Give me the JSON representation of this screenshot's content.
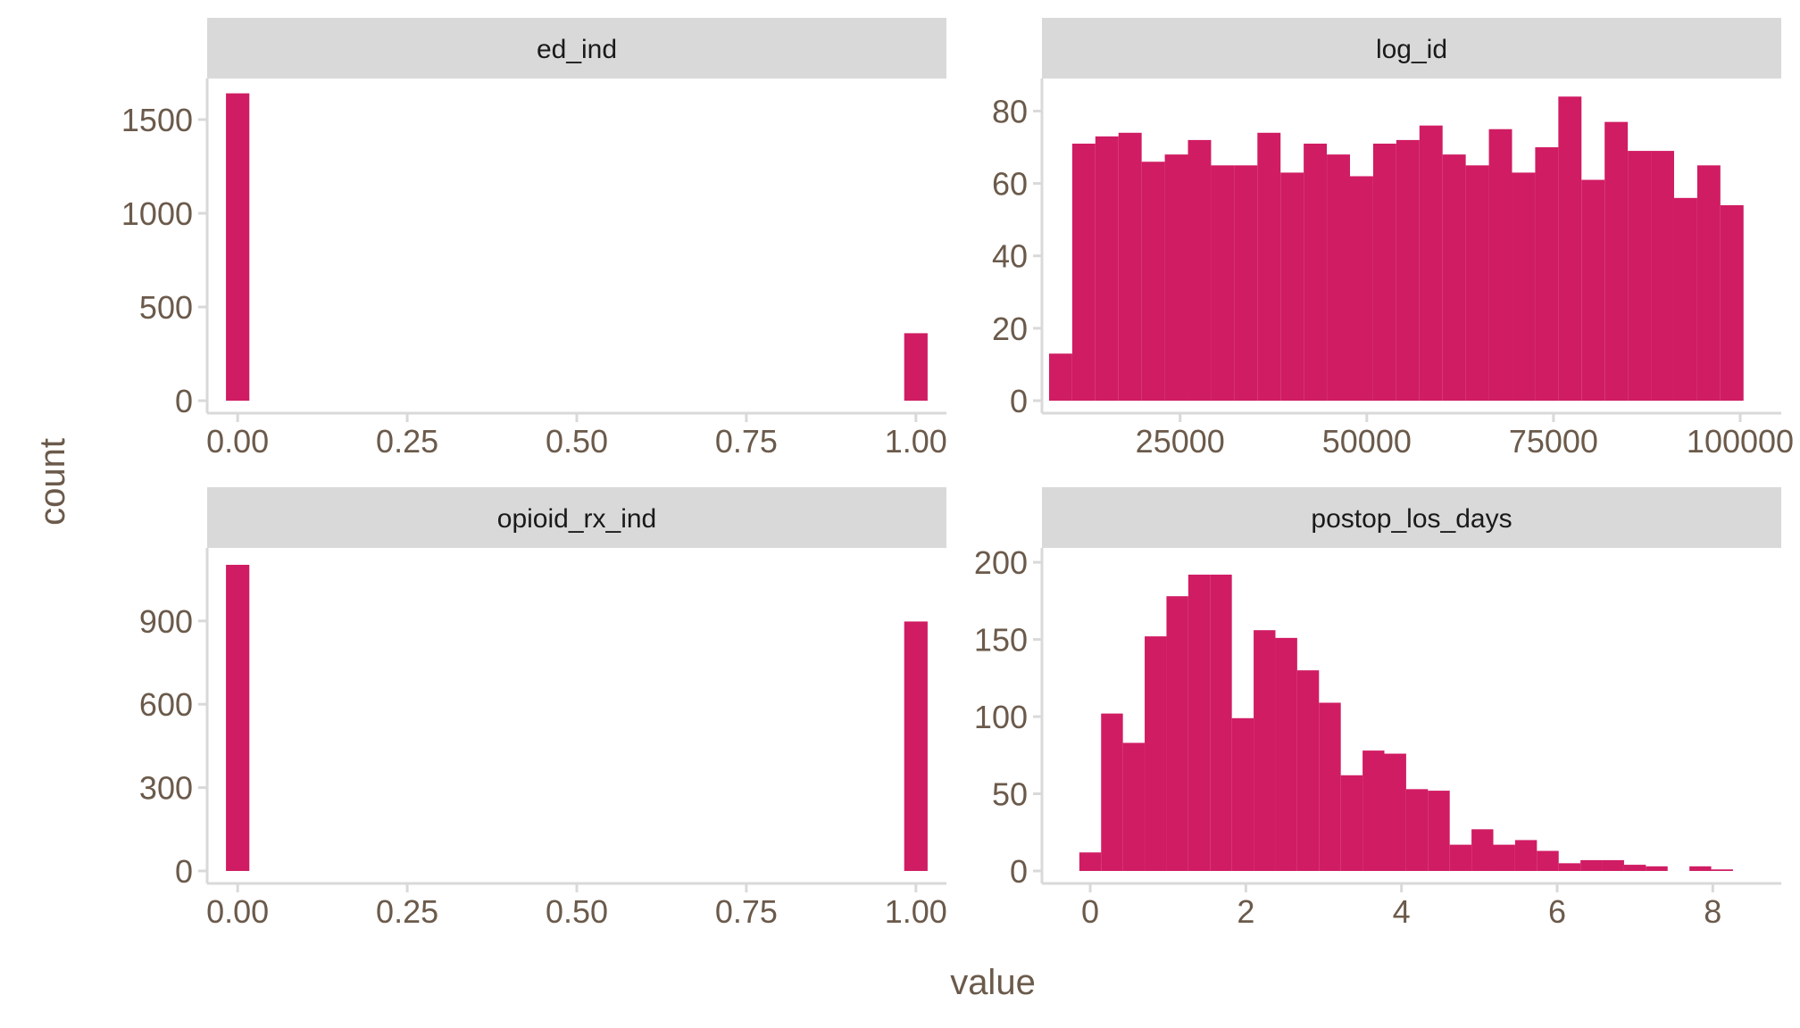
{
  "figure": {
    "x_title": "value",
    "y_title": "count",
    "colors": {
      "bar": "#D01C63",
      "strip": "#D9D9D9",
      "axis_line": "#D9D9D9",
      "text": "#6B5A4B"
    }
  },
  "chart_data": [
    {
      "type": "bar",
      "facet": "ed_ind",
      "title": "ed_ind",
      "xlabel": "value",
      "ylabel": "count",
      "xlim": [
        -0.045,
        1.045
      ],
      "ylim": [
        0,
        1700
      ],
      "xticks": [
        0,
        0.25,
        0.5,
        0.75,
        1.0
      ],
      "xtick_labels": [
        "0.00",
        "0.25",
        "0.50",
        "0.75",
        "1.00"
      ],
      "yticks": [
        0,
        500,
        1000,
        1500
      ],
      "ytick_labels": [
        "0",
        "500",
        "1000",
        "1500"
      ],
      "bin_width": 0.0345,
      "bins": [
        {
          "x": 0.0,
          "count": 1640
        },
        {
          "x": 1.0,
          "count": 360
        }
      ]
    },
    {
      "type": "bar",
      "facet": "log_id",
      "title": "log_id",
      "xlabel": "value",
      "ylabel": "count",
      "xlim": [
        6500,
        105500
      ],
      "ylim": [
        0,
        88
      ],
      "xticks": [
        25000,
        50000,
        75000,
        100000
      ],
      "xtick_labels": [
        "25000",
        "50000",
        "75000",
        "100000"
      ],
      "yticks": [
        0,
        20,
        40,
        60,
        80
      ],
      "ytick_labels": [
        "0",
        "20",
        "40",
        "60",
        "80"
      ],
      "bin_width": 3100,
      "bins": [
        {
          "x": 9000,
          "count": 13
        },
        {
          "x": 12100,
          "count": 71
        },
        {
          "x": 15200,
          "count": 73
        },
        {
          "x": 18300,
          "count": 74
        },
        {
          "x": 21400,
          "count": 66
        },
        {
          "x": 24500,
          "count": 68
        },
        {
          "x": 27600,
          "count": 72
        },
        {
          "x": 30700,
          "count": 65
        },
        {
          "x": 33800,
          "count": 65
        },
        {
          "x": 36900,
          "count": 74
        },
        {
          "x": 40000,
          "count": 63
        },
        {
          "x": 43100,
          "count": 71
        },
        {
          "x": 46200,
          "count": 68
        },
        {
          "x": 49300,
          "count": 62
        },
        {
          "x": 52400,
          "count": 71
        },
        {
          "x": 55500,
          "count": 72
        },
        {
          "x": 58600,
          "count": 76
        },
        {
          "x": 61700,
          "count": 68
        },
        {
          "x": 64800,
          "count": 65
        },
        {
          "x": 67900,
          "count": 75
        },
        {
          "x": 71000,
          "count": 63
        },
        {
          "x": 74100,
          "count": 70
        },
        {
          "x": 77200,
          "count": 84
        },
        {
          "x": 80300,
          "count": 61
        },
        {
          "x": 83400,
          "count": 77
        },
        {
          "x": 86500,
          "count": 69
        },
        {
          "x": 89600,
          "count": 69
        },
        {
          "x": 92700,
          "count": 56
        },
        {
          "x": 95800,
          "count": 65
        },
        {
          "x": 98900,
          "count": 54
        }
      ]
    },
    {
      "type": "bar",
      "facet": "opioid_rx_ind",
      "title": "opioid_rx_ind",
      "xlabel": "value",
      "ylabel": "count",
      "xlim": [
        -0.045,
        1.045
      ],
      "ylim": [
        0,
        1150
      ],
      "xticks": [
        0,
        0.25,
        0.5,
        0.75,
        1.0
      ],
      "xtick_labels": [
        "0.00",
        "0.25",
        "0.50",
        "0.75",
        "1.00"
      ],
      "yticks": [
        0,
        300,
        600,
        900
      ],
      "ytick_labels": [
        "0",
        "300",
        "600",
        "900"
      ],
      "bin_width": 0.0345,
      "bins": [
        {
          "x": 0.0,
          "count": 1102
        },
        {
          "x": 1.0,
          "count": 898
        }
      ]
    },
    {
      "type": "bar",
      "facet": "postop_los_days",
      "title": "postop_los_days",
      "xlabel": "value",
      "ylabel": "count",
      "xlim": [
        -0.62,
        8.88
      ],
      "ylim": [
        0,
        207
      ],
      "xticks": [
        0,
        2,
        4,
        6,
        8
      ],
      "xtick_labels": [
        "0",
        "2",
        "4",
        "6",
        "8"
      ],
      "yticks": [
        0,
        50,
        100,
        150,
        200
      ],
      "ytick_labels": [
        "0",
        "50",
        "100",
        "150",
        "200"
      ],
      "bin_width": 0.28,
      "bins": [
        {
          "x": 0.0,
          "count": 12
        },
        {
          "x": 0.28,
          "count": 102
        },
        {
          "x": 0.56,
          "count": 83
        },
        {
          "x": 0.84,
          "count": 152
        },
        {
          "x": 1.12,
          "count": 178
        },
        {
          "x": 1.4,
          "count": 192
        },
        {
          "x": 1.68,
          "count": 192
        },
        {
          "x": 1.96,
          "count": 99
        },
        {
          "x": 2.24,
          "count": 156
        },
        {
          "x": 2.52,
          "count": 151
        },
        {
          "x": 2.8,
          "count": 130
        },
        {
          "x": 3.08,
          "count": 109
        },
        {
          "x": 3.36,
          "count": 62
        },
        {
          "x": 3.64,
          "count": 78
        },
        {
          "x": 3.92,
          "count": 76
        },
        {
          "x": 4.2,
          "count": 53
        },
        {
          "x": 4.48,
          "count": 52
        },
        {
          "x": 4.76,
          "count": 17
        },
        {
          "x": 5.04,
          "count": 27
        },
        {
          "x": 5.32,
          "count": 17
        },
        {
          "x": 5.6,
          "count": 20
        },
        {
          "x": 5.88,
          "count": 13
        },
        {
          "x": 6.16,
          "count": 5
        },
        {
          "x": 6.44,
          "count": 7
        },
        {
          "x": 6.72,
          "count": 7
        },
        {
          "x": 7.0,
          "count": 4
        },
        {
          "x": 7.28,
          "count": 3
        },
        {
          "x": 7.56,
          "count": 0
        },
        {
          "x": 7.84,
          "count": 3
        },
        {
          "x": 8.12,
          "count": 1
        }
      ]
    }
  ]
}
